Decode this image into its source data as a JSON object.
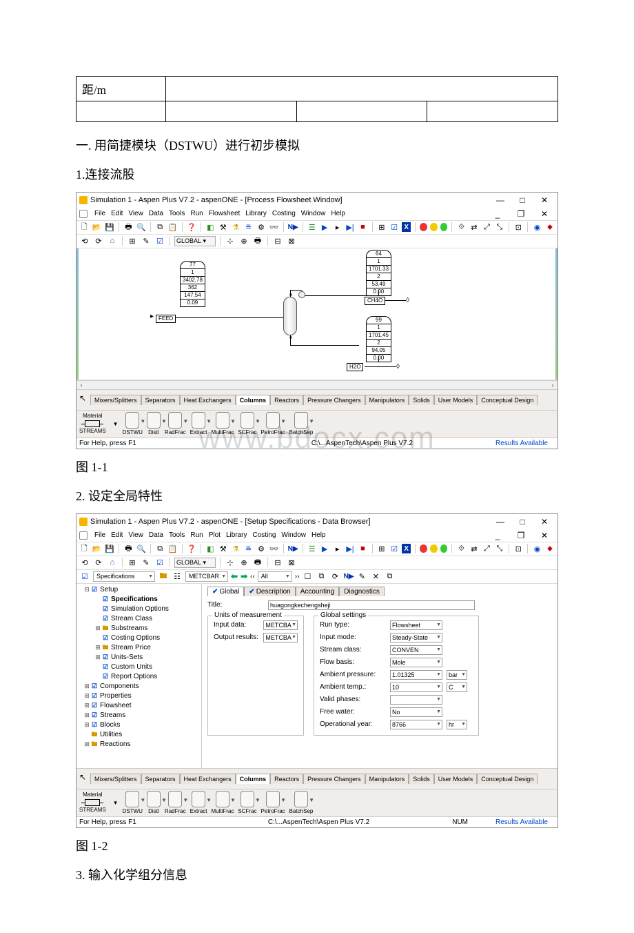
{
  "table": {
    "cell_r1c1": "距/m"
  },
  "text": {
    "heading1": "一. 用简捷模块（DSTWU）进行初步模拟",
    "sub1": "1.连接流股",
    "caption1": "图 1-1",
    "sub2": "2. 设定全局特性",
    "caption2": "图 1-2",
    "sub3": "3. 输入化学组分信息"
  },
  "app1": {
    "title": "Simulation 1 - Aspen Plus V7.2 - aspenONE - [Process Flowsheet Window]",
    "menu": [
      "File",
      "Edit",
      "View",
      "Data",
      "Tools",
      "Run",
      "Flowsheet",
      "Library",
      "Costing",
      "Window",
      "Help"
    ],
    "global": "GLOBAL",
    "path": "C:\\...AspenTech\\Aspen Plus V7.2",
    "results": "Results Available",
    "help": "For Help, press F1",
    "watermark": "www.bdocx.com",
    "feed": {
      "flag": "77",
      "v1": "1",
      "v2": "3402.78",
      "v3": "362",
      "v4": "147.54",
      "v5": "0.09",
      "label": "FEED"
    },
    "topout": {
      "flag": "64",
      "v1": "1",
      "v2": "1701.33",
      "v3": "2",
      "v4": "53.49",
      "v5": "0.00",
      "label": "CH4O"
    },
    "botout": {
      "flag": "99",
      "v1": "1",
      "v2": "1701.45",
      "v3": "2",
      "v4": "94.05",
      "v5": "0.00",
      "label": "H2O"
    },
    "paltabs": [
      "Mixers/Splitters",
      "Separators",
      "Heat Exchangers",
      "Columns",
      "Reactors",
      "Pressure Changers",
      "Manipulators",
      "Solids",
      "User Models",
      "Conceptual Design"
    ],
    "palitems": [
      "DSTWU",
      "Distl",
      "RadFrac",
      "Extract",
      "MultiFrac",
      "SCFrac",
      "PetroFrac",
      "BatchSep"
    ],
    "material": "Material",
    "streams": "STREAMS"
  },
  "app2": {
    "title": "Simulation 1 - Aspen Plus V7.2 - aspenONE - [Setup Specifications - Data Browser]",
    "menu": [
      "File",
      "Edit",
      "View",
      "Data",
      "Tools",
      "Run",
      "Plot",
      "Library",
      "Costing",
      "Window",
      "Help"
    ],
    "navSpec": "Specifications",
    "navMet": "METCBAR",
    "navAll": "All",
    "tree": [
      {
        "l": 0,
        "e": "-",
        "i": "b",
        "t": "Setup",
        "b": 0
      },
      {
        "l": 1,
        "e": "",
        "i": "b",
        "t": "Specifications",
        "b": 1
      },
      {
        "l": 1,
        "e": "",
        "i": "b",
        "t": "Simulation Options",
        "b": 0
      },
      {
        "l": 1,
        "e": "",
        "i": "b",
        "t": "Stream Class",
        "b": 0
      },
      {
        "l": 1,
        "e": "+",
        "i": "f",
        "t": "Substreams",
        "b": 0
      },
      {
        "l": 1,
        "e": "",
        "i": "b",
        "t": "Costing Options",
        "b": 0
      },
      {
        "l": 1,
        "e": "+",
        "i": "f",
        "t": "Stream Price",
        "b": 0
      },
      {
        "l": 1,
        "e": "+",
        "i": "b",
        "t": "Units-Sets",
        "b": 0
      },
      {
        "l": 1,
        "e": "",
        "i": "b",
        "t": "Custom Units",
        "b": 0
      },
      {
        "l": 1,
        "e": "",
        "i": "b",
        "t": "Report Options",
        "b": 0
      },
      {
        "l": 0,
        "e": "+",
        "i": "b",
        "t": "Components",
        "b": 0
      },
      {
        "l": 0,
        "e": "+",
        "i": "b",
        "t": "Properties",
        "b": 0
      },
      {
        "l": 0,
        "e": "+",
        "i": "b",
        "t": "Flowsheet",
        "b": 0
      },
      {
        "l": 0,
        "e": "+",
        "i": "b",
        "t": "Streams",
        "b": 0
      },
      {
        "l": 0,
        "e": "+",
        "i": "b",
        "t": "Blocks",
        "b": 0
      },
      {
        "l": 0,
        "e": "",
        "i": "f",
        "t": "Utilities",
        "b": 0
      },
      {
        "l": 0,
        "e": "+",
        "i": "f",
        "t": "Reactions",
        "b": 0
      }
    ],
    "tabs": [
      "Global",
      "Description",
      "Accounting",
      "Diagnostics"
    ],
    "titleLabel": "Title:",
    "titleVal": "huagongkechengsheji",
    "groupUnits": "Units of measurement",
    "inputData": "Input data:",
    "outputRes": "Output results:",
    "metc": "METCBA",
    "groupGlobal": "Global settings",
    "settings": [
      {
        "l": "Run type:",
        "v": "Flowsheet",
        "ro": 0,
        "u": ""
      },
      {
        "l": "Input mode:",
        "v": "Steady-State",
        "ro": 1,
        "u": ""
      },
      {
        "l": "Stream class:",
        "v": "CONVEN",
        "ro": 0,
        "u": ""
      },
      {
        "l": "Flow basis:",
        "v": "Mole",
        "ro": 1,
        "u": ""
      },
      {
        "l": "Ambient pressure:",
        "v": "1.01325",
        "ro": 1,
        "u": "bar"
      },
      {
        "l": "Ambient temp.:",
        "v": "10",
        "ro": 1,
        "u": "C"
      },
      {
        "l": "Valid phases:",
        "v": "",
        "ro": 0,
        "u": ""
      },
      {
        "l": "Free water:",
        "v": "No",
        "ro": 1,
        "u": ""
      },
      {
        "l": "Operational year:",
        "v": "8766",
        "ro": 1,
        "u": "hr"
      }
    ],
    "path": "C:\\...AspenTech\\Aspen Plus V7.2",
    "results": "Results Available",
    "num": "NUM",
    "help": "For Help, press F1"
  }
}
